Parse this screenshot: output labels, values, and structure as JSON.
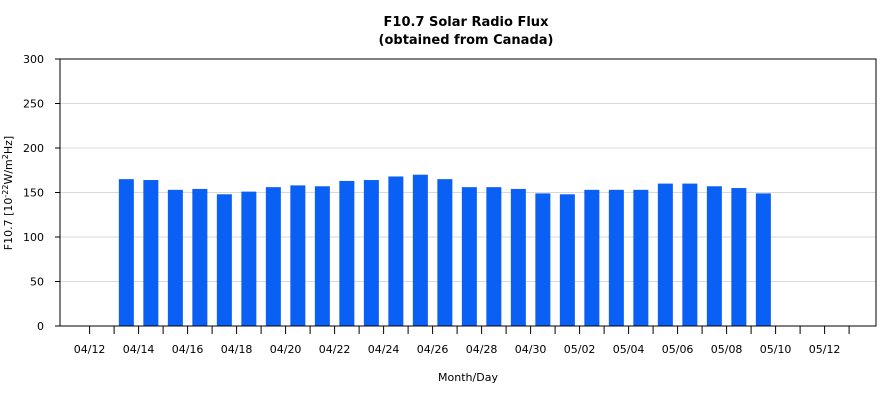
{
  "chart_data": {
    "type": "bar",
    "title": "F10.7 Solar Radio Flux",
    "subtitle": "(obtained from Canada)",
    "xlabel": "Month/Day",
    "ylabel_prefix": "F10.7 [10",
    "ylabel_exp1": "-22",
    "ylabel_mid": "W/m",
    "ylabel_exp2": "2",
    "ylabel_suffix": "Hz]",
    "ylim": [
      0,
      300
    ],
    "yticks": [
      0,
      50,
      100,
      150,
      200,
      250,
      300
    ],
    "grid": true,
    "bar_color": "#0a5ff5",
    "x_tick_labels": [
      "04/12",
      "04/14",
      "04/16",
      "04/18",
      "04/20",
      "04/22",
      "04/24",
      "04/26",
      "04/28",
      "04/30",
      "05/02",
      "05/04",
      "05/06",
      "05/08",
      "05/10",
      "05/12"
    ],
    "categories": [
      "04/12",
      "04/13",
      "04/14",
      "04/15",
      "04/16",
      "04/17",
      "04/18",
      "04/19",
      "04/20",
      "04/21",
      "04/22",
      "04/23",
      "04/24",
      "04/25",
      "04/26",
      "04/27",
      "04/28",
      "04/29",
      "04/30",
      "05/01",
      "05/02",
      "05/03",
      "05/04",
      "05/05",
      "05/06",
      "05/07",
      "05/08",
      "05/09",
      "05/10",
      "05/11",
      "05/12",
      "05/13"
    ],
    "values": [
      null,
      165,
      164,
      153,
      154,
      148,
      151,
      156,
      158,
      157,
      163,
      164,
      168,
      170,
      165,
      156,
      156,
      154,
      149,
      148,
      153,
      153,
      153,
      160,
      160,
      157,
      155,
      149,
      null,
      null,
      null,
      null
    ]
  }
}
